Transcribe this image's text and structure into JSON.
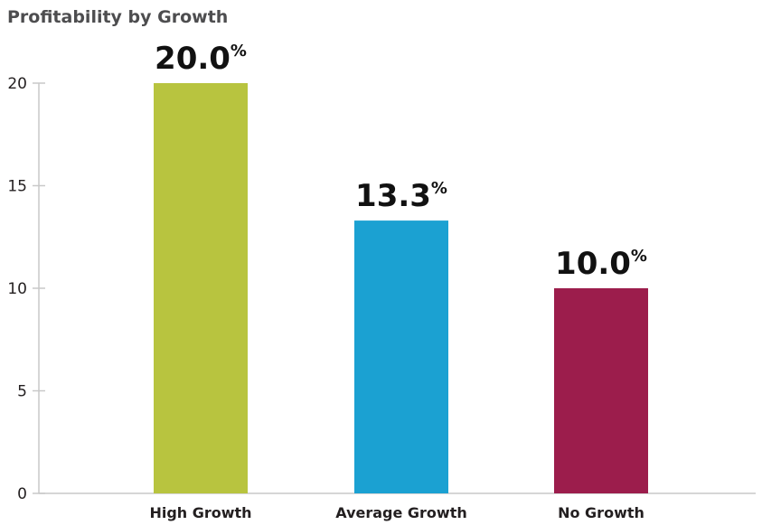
{
  "chart_data": {
    "type": "bar",
    "title": "Profitability by Growth",
    "categories": [
      "High Growth",
      "Average Growth",
      "No Growth"
    ],
    "values": [
      20.0,
      13.3,
      10.0
    ],
    "data_labels": [
      "20.0",
      "13.3",
      "10.0"
    ],
    "value_suffix": "%",
    "bar_colors": [
      "#b8c43f",
      "#1ba1d2",
      "#9c1d4c"
    ],
    "ylim": [
      0,
      20
    ],
    "yticks": [
      0,
      5,
      10,
      15,
      20
    ],
    "xlabel": "",
    "ylabel": "",
    "grid": false,
    "legend": "none"
  }
}
